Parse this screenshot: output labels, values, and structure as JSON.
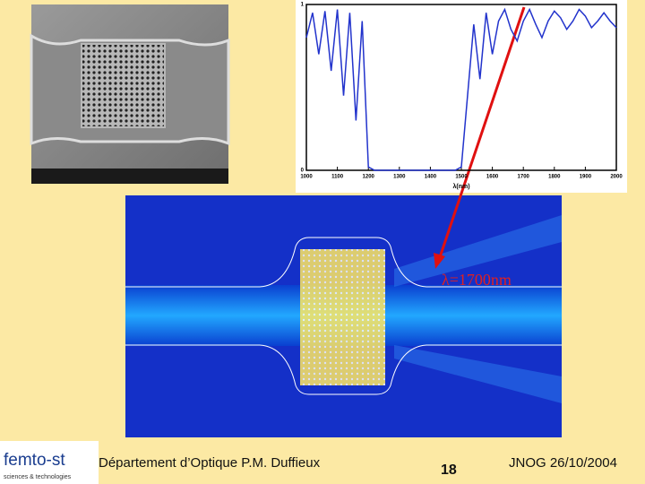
{
  "chart_data": {
    "type": "line",
    "xlabel": "λ(nm)",
    "x": [
      1000,
      1020,
      1040,
      1060,
      1080,
      1100,
      1120,
      1140,
      1160,
      1180,
      1200,
      1220,
      1240,
      1260,
      1280,
      1300,
      1320,
      1340,
      1360,
      1380,
      1400,
      1420,
      1440,
      1460,
      1480,
      1500,
      1520,
      1540,
      1560,
      1580,
      1600,
      1620,
      1640,
      1660,
      1680,
      1700,
      1720,
      1740,
      1760,
      1780,
      1800,
      1820,
      1840,
      1860,
      1880,
      1900,
      1920,
      1940,
      1960,
      1980,
      2000
    ],
    "series": [
      {
        "color": "#2233cc",
        "values": [
          0.8,
          0.95,
          0.7,
          0.96,
          0.6,
          0.97,
          0.45,
          0.95,
          0.3,
          0.9,
          0.02,
          0,
          0,
          0,
          0,
          0,
          0,
          0,
          0,
          0,
          0,
          0,
          0,
          0,
          0,
          0.02,
          0.45,
          0.88,
          0.55,
          0.95,
          0.7,
          0.9,
          0.97,
          0.85,
          0.78,
          0.9,
          0.97,
          0.88,
          0.8,
          0.9,
          0.96,
          0.92,
          0.85,
          0.9,
          0.97,
          0.93,
          0.86,
          0.9,
          0.95,
          0.9,
          0.86
        ]
      }
    ],
    "xlim": [
      1000,
      2000
    ],
    "xticks": [
      1000,
      1100,
      1200,
      1300,
      1400,
      1500,
      1600,
      1700,
      1800,
      1900,
      2000
    ],
    "ylim": [
      0,
      1
    ],
    "yticks": [
      0,
      1
    ]
  },
  "simulation": {
    "label": "λ=1700nm"
  },
  "footer": {
    "logo": "femto-st",
    "logo_subtitle": "sciences & technologies",
    "department": "Département d’Optique P.M. Duffieux",
    "page": "18",
    "event": "JNOG 26/10/2004"
  }
}
